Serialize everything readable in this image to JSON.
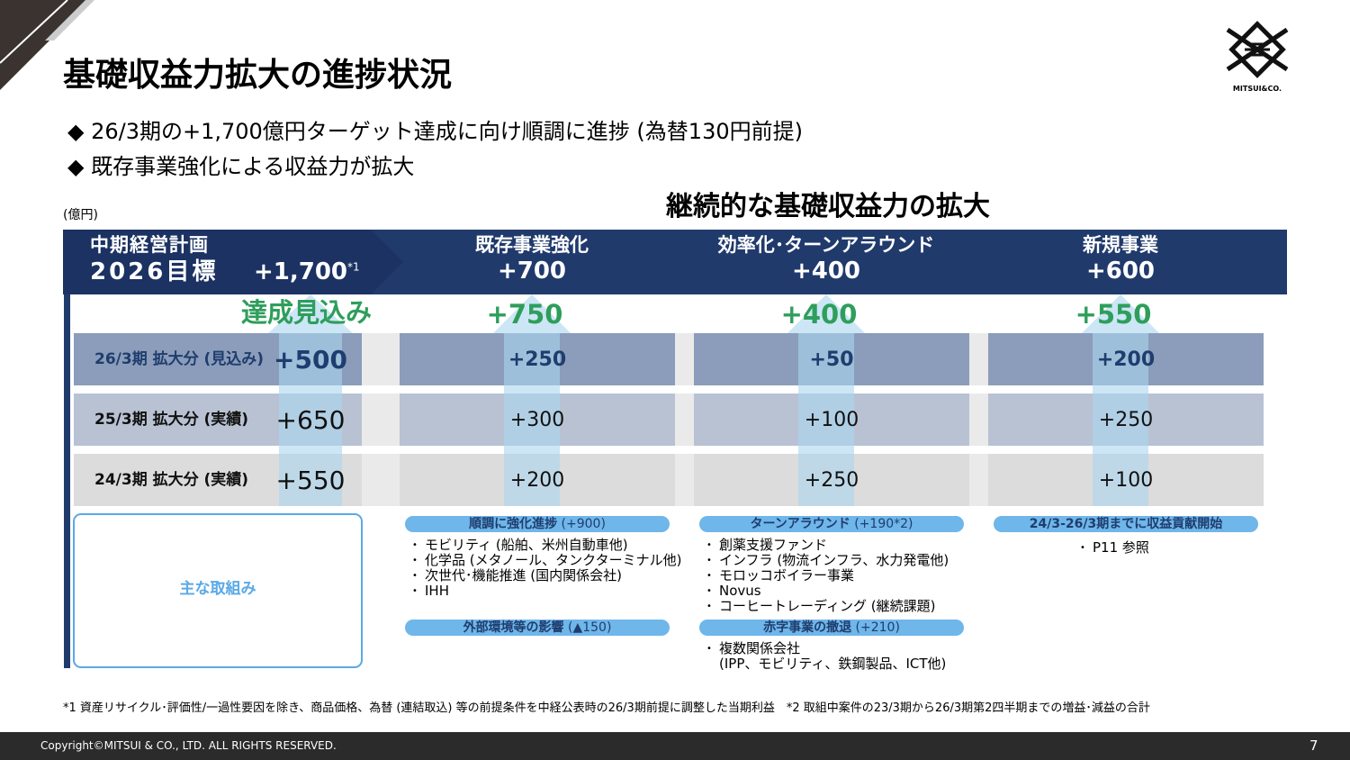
{
  "header": {
    "title": "基礎収益力拡大の進捗状況",
    "logo_text": "MITSUI&CO."
  },
  "bullets": [
    "26/3期の+1,700億円ターゲット達成に向け順調に進捗 (為替130円前提)",
    "既存事業強化による収益力が拡大"
  ],
  "unit": "(億円)",
  "section_title": "継続的な基礎収益力の拡大",
  "plan": {
    "label_line1": "中期経営計画",
    "label_line2": "2026目標",
    "target": "+1,700",
    "target_note": "*1",
    "outlook_label": "達成見込み"
  },
  "columns": [
    {
      "name": "既存事業強化",
      "target": "+700",
      "outlook": "+750"
    },
    {
      "name": "効率化･ターンアラウンド",
      "target": "+400",
      "outlook": "+400"
    },
    {
      "name": "新規事業",
      "target": "+600",
      "outlook": "+550"
    }
  ],
  "rows": [
    {
      "label": "26/3期 拡大分 (見込み)",
      "total": "+500",
      "values": [
        "+250",
        "+50",
        "+200"
      ]
    },
    {
      "label": "25/3期 拡大分 (実績)",
      "total": "+650",
      "values": [
        "+300",
        "+100",
        "+250"
      ]
    },
    {
      "label": "24/3期  拡大分 (実績)",
      "total": "+550",
      "values": [
        "+200",
        "+250",
        "+100"
      ]
    }
  ],
  "initiatives_label": "主な取組み",
  "initiatives": [
    [
      {
        "heading": "順調に強化進捗",
        "amount": "(+900)",
        "items": [
          "モビリティ (船舶、米州自動車他)",
          "化学品 (メタノール、タンクターミナル他)",
          "次世代･機能推進 (国内関係会社)",
          "IHH"
        ]
      },
      {
        "heading": "外部環境等の影響",
        "amount": "(▲150)",
        "items": []
      }
    ],
    [
      {
        "heading": "ターンアラウンド",
        "amount": "(+190*2)",
        "items": [
          "創薬支援ファンド",
          "インフラ (物流インフラ、水力発電他)",
          "モロッコボイラー事業",
          "Novus",
          "コーヒートレーディング (継続課題)"
        ]
      },
      {
        "heading": "赤字事業の撤退",
        "amount": "(+210)",
        "items": [
          "複数関係会社"
        ],
        "note": "(IPP、モビリティ、鉄鋼製品、ICT他)"
      }
    ],
    [
      {
        "heading": "24/3-26/3期までに収益貢献開始",
        "amount": "",
        "items": [
          "P11 参照"
        ]
      }
    ]
  ],
  "footnote": "*1 資産リサイクル･評価性/一過性要因を除き、商品価格、為替 (連結取込) 等の前提条件を中経公表時の26/3期前提に調整した当期利益　*2 取組中案件の23/3期から26/3期第2四半期までの増益･減益の合計",
  "footer": {
    "copyright": "Copyright©MITSUI & CO., LTD. ALL RIGHTS RESERVED.",
    "page": "7"
  }
}
